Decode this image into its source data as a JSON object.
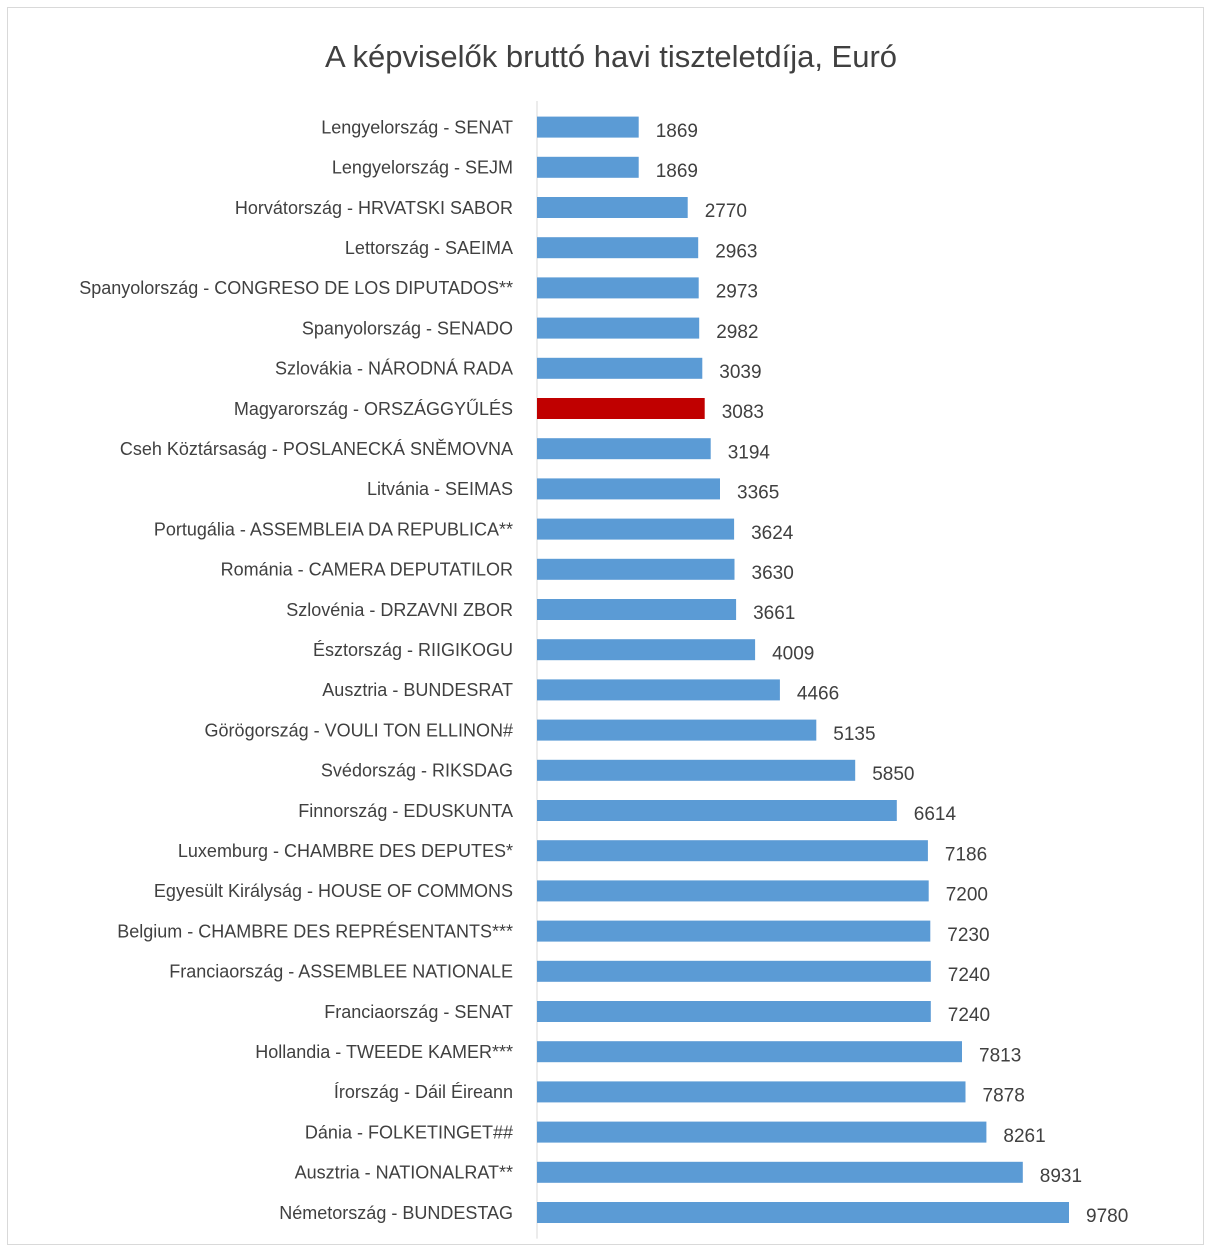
{
  "chart_data": {
    "type": "bar",
    "orientation": "horizontal",
    "title": "A képviselők bruttó havi tiszteletdíja, Euró",
    "xlabel": "",
    "ylabel": "",
    "xlim": [
      0,
      10000
    ],
    "grid": false,
    "legend": "none",
    "colors": {
      "default_bar": "#5b9bd5",
      "highlight_bar": "#c00000",
      "axis_line": "#d9d9d9",
      "text": "#404040"
    },
    "highlight_category": "Magyarország - ORSZÁGGYŰLÉS",
    "categories": [
      "Lengyelország - SENAT",
      "Lengyelország - SEJM",
      "Horvátország - HRVATSKI SABOR",
      "Lettország - SAEIMA",
      "Spanyolország - CONGRESO DE LOS DIPUTADOS**",
      "Spanyolország - SENADO",
      "Szlovákia - NÁRODNÁ RADA",
      "Magyarország - ORSZÁGGYŰLÉS",
      "Cseh Köztársaság - POSLANECKÁ SNĚMOVNA",
      "Litvánia - SEIMAS",
      "Portugália - ASSEMBLEIA DA REPUBLICA**",
      "Románia - CAMERA DEPUTATILOR",
      "Szlovénia - DRZAVNI ZBOR",
      "Észtország - RIIGIKOGU",
      "Ausztria - BUNDESRAT",
      "Görögország - VOULI TON ELLINON#",
      "Svédország - RIKSDAG",
      "Finnország - EDUSKUNTA",
      "Luxemburg - CHAMBRE DES DEPUTES*",
      "Egyesült Királyság - HOUSE OF COMMONS",
      "Belgium - CHAMBRE DES REPRÉSENTANTS***",
      "Franciaország  - ASSEMBLEE NATIONALE",
      "Franciaország  - SENAT",
      "Hollandia - TWEEDE KAMER***",
      "Írország - Dáil Éireann",
      "Dánia - FOLKETINGET##",
      "Ausztria - NATIONALRAT**",
      "Németország  - BUNDESTAG"
    ],
    "values": [
      1869,
      1869,
      2770,
      2963,
      2973,
      2982,
      3039,
      3083,
      3194,
      3365,
      3624,
      3630,
      3661,
      4009,
      4466,
      5135,
      5850,
      6614,
      7186,
      7200,
      7230,
      7240,
      7240,
      7813,
      7878,
      8261,
      8931,
      9780
    ]
  }
}
